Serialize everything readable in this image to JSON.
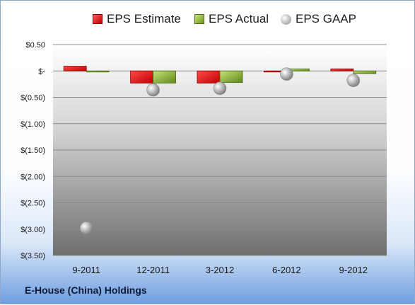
{
  "chart_data": {
    "type": "bar",
    "title": "",
    "company": "E-House (China) Holdings",
    "categories": [
      "9-2011",
      "12-2011",
      "3-2012",
      "6-2012",
      "9-2012"
    ],
    "series": [
      {
        "name": "EPS Estimate",
        "type": "bar",
        "values": [
          0.09,
          -0.23,
          -0.23,
          -0.02,
          0.04
        ],
        "color": "#e02020"
      },
      {
        "name": "EPS Actual",
        "type": "bar",
        "values": [
          -0.01,
          -0.23,
          -0.22,
          0.04,
          -0.05
        ],
        "color": "#9bbb59"
      },
      {
        "name": "EPS GAAP",
        "type": "scatter",
        "values": [
          -2.98,
          -0.36,
          -0.33,
          -0.06,
          -0.18
        ],
        "color": "#b0b0b0"
      }
    ],
    "y_ticks": [
      "$0.50",
      "$-",
      "$(0.50)",
      "$(1.00)",
      "$(1.50)",
      "$(2.00)",
      "$(2.50)",
      "$(3.00)",
      "$(3.50)"
    ],
    "ylim": [
      -3.5,
      0.5
    ],
    "grid": true,
    "legend_position": "top"
  }
}
